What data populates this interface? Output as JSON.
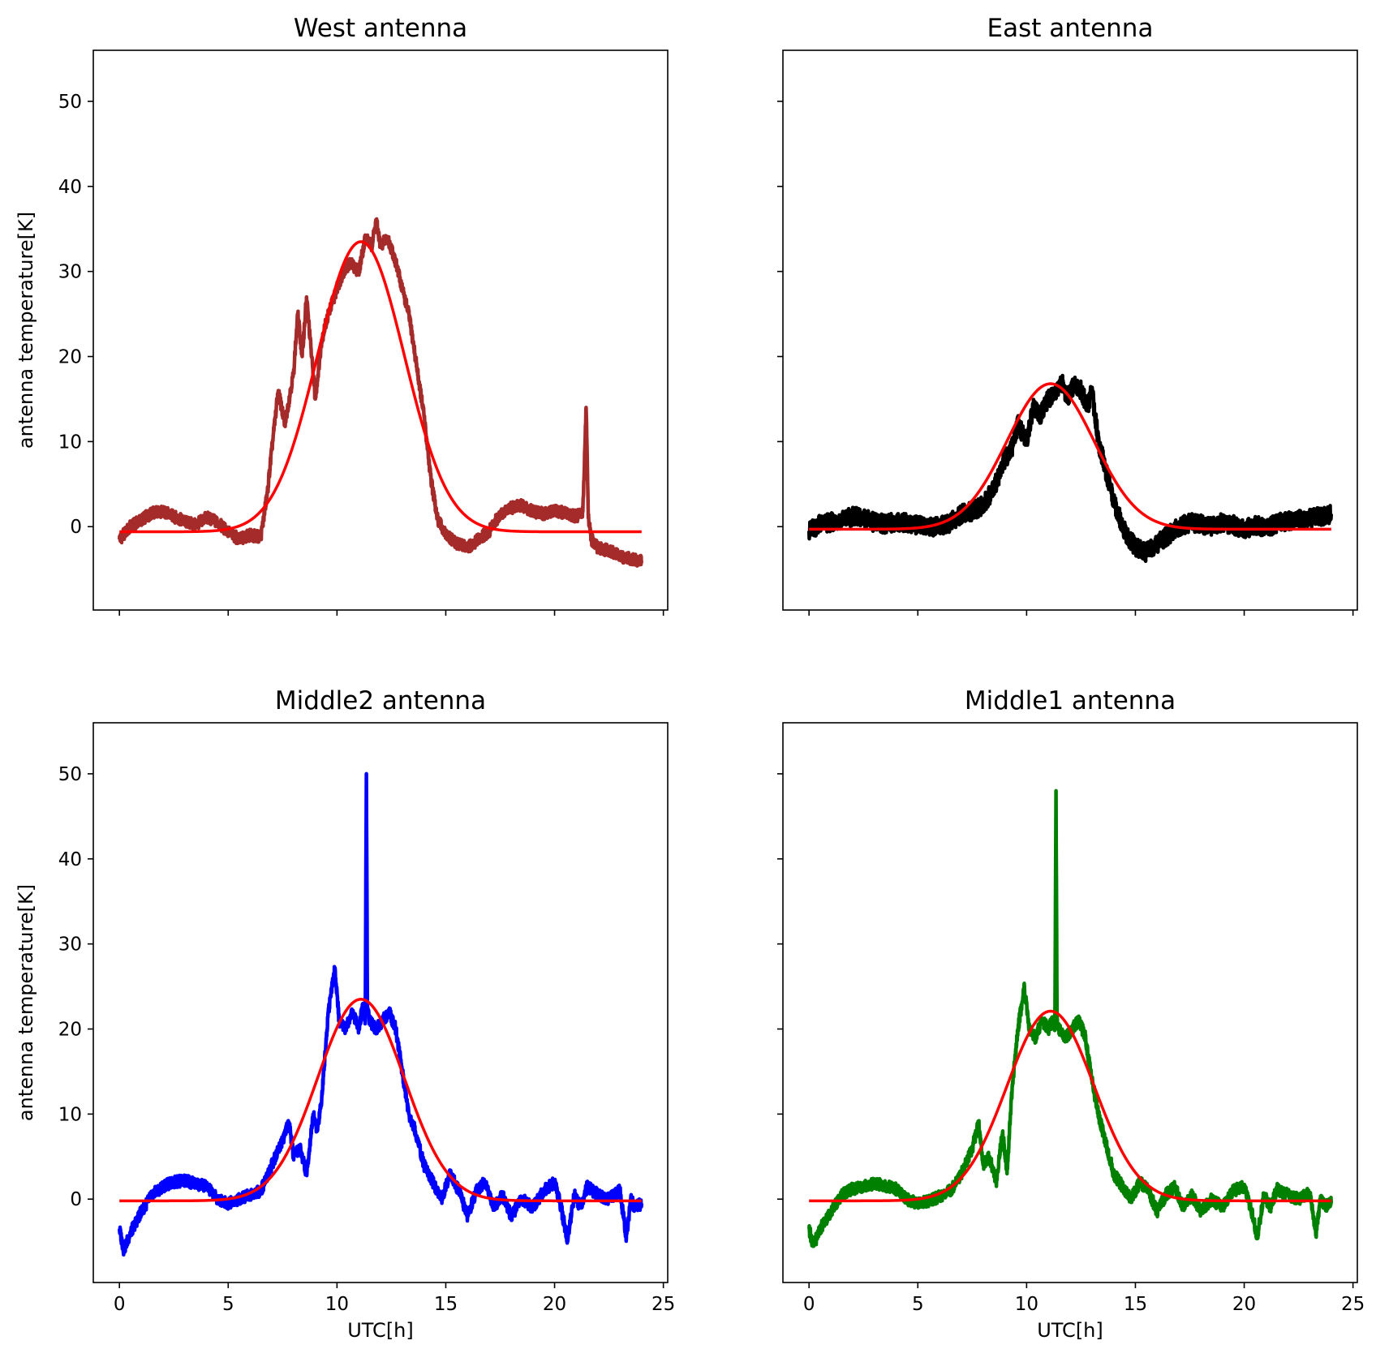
{
  "chart_data": [
    {
      "type": "line",
      "title": "West antenna",
      "xlabel": "",
      "ylabel": "antenna temperature[K]",
      "xlim": [
        -1.2,
        25.2
      ],
      "ylim": [
        -9.8,
        56
      ],
      "xticks": [
        0,
        5,
        10,
        15,
        20,
        25
      ],
      "yticks": [
        0,
        10,
        20,
        30,
        40,
        50
      ],
      "show_x_tick_labels": false,
      "show_y_tick_labels": true,
      "grid": false,
      "series": [
        {
          "role": "data",
          "color": "#a52a2a",
          "x": [
            0,
            0.5,
            1,
            1.5,
            2,
            2.5,
            3,
            3.5,
            4,
            4.5,
            5,
            5.5,
            6,
            6.5,
            6.8,
            7,
            7.3,
            7.6,
            8,
            8.2,
            8.4,
            8.6,
            8.8,
            9,
            9.3,
            9.6,
            10,
            10.3,
            10.6,
            11,
            11.3,
            11.6,
            11.8,
            12,
            12.3,
            12.6,
            13,
            13.3,
            13.6,
            14,
            14.3,
            14.6,
            15,
            15.5,
            16,
            16.5,
            17,
            17.5,
            18,
            18.5,
            19,
            19.5,
            20,
            20.5,
            21,
            21.3,
            21.45,
            21.55,
            21.7,
            22,
            22.5,
            23,
            23.5,
            24
          ],
          "y": [
            -1.5,
            0,
            0.8,
            1.6,
            1.8,
            1.2,
            0.6,
            0.2,
            1.1,
            0.5,
            -0.6,
            -1.5,
            -1,
            -1.2,
            4,
            9,
            16,
            12,
            18,
            25,
            20,
            27,
            21,
            15,
            22,
            25,
            28,
            30,
            31,
            30,
            34,
            33,
            36,
            33,
            34,
            32,
            28,
            25,
            20,
            13,
            6,
            1,
            -1,
            -2,
            -2.5,
            -1.5,
            -0.5,
            1.5,
            2.2,
            2.5,
            1.8,
            1.5,
            1.9,
            1.6,
            1.2,
            1.8,
            14,
            1,
            -1.5,
            -2.5,
            -2.8,
            -3.5,
            -3.8,
            -4
          ]
        },
        {
          "role": "fit",
          "color": "#ff0000",
          "gaussian": {
            "amplitude": 34.1,
            "center": 11.1,
            "sigma": 2.0,
            "offset": -0.6
          }
        }
      ]
    },
    {
      "type": "line",
      "title": "East antenna",
      "xlabel": "",
      "ylabel": "",
      "xlim": [
        -1.2,
        25.2
      ],
      "ylim": [
        -9.8,
        56
      ],
      "xticks": [
        0,
        5,
        10,
        15,
        20,
        25
      ],
      "yticks": [
        0,
        10,
        20,
        30,
        40,
        50
      ],
      "show_x_tick_labels": false,
      "show_y_tick_labels": false,
      "grid": false,
      "series": [
        {
          "role": "data",
          "color": "#000000",
          "x": [
            0,
            0.5,
            1,
            1.5,
            2,
            2.5,
            3,
            3.5,
            4,
            4.5,
            5,
            5.5,
            6,
            6.5,
            7,
            7.5,
            8,
            8.5,
            9,
            9.3,
            9.6,
            10,
            10.3,
            10.6,
            11,
            11.3,
            11.6,
            11.9,
            12.2,
            12.5,
            12.8,
            13,
            13.3,
            13.6,
            14,
            14.5,
            15,
            15.5,
            16,
            16.5,
            17,
            17.5,
            18,
            18.5,
            19,
            19.5,
            20,
            20.5,
            21,
            21.5,
            22,
            22.5,
            23,
            23.5,
            24
          ],
          "y": [
            -0.5,
            0.3,
            0.5,
            0.8,
            1.2,
            1.0,
            0.5,
            0.3,
            0.6,
            0.4,
            0.2,
            0.0,
            0.0,
            0.5,
            1.5,
            1.8,
            2.5,
            4.5,
            8,
            9,
            12,
            10,
            14,
            13,
            15,
            16,
            17,
            15,
            17,
            16,
            14,
            16,
            10,
            7,
            3,
            -0.5,
            -2.5,
            -3,
            -2,
            -1,
            0,
            0.5,
            0.3,
            0,
            0.5,
            0.2,
            -0.3,
            0.2,
            -0.2,
            0.4,
            0.6,
            0.8,
            1.0,
            1.2,
            1.5
          ]
        },
        {
          "role": "fit",
          "color": "#ff0000",
          "gaussian": {
            "amplitude": 17.1,
            "center": 11.1,
            "sigma": 2.0,
            "offset": -0.3
          }
        }
      ]
    },
    {
      "type": "line",
      "title": "Middle2 antenna",
      "xlabel": "UTC[h]",
      "ylabel": "antenna temperature[K]",
      "xlim": [
        -1.2,
        25.2
      ],
      "ylim": [
        -9.8,
        56
      ],
      "xticks": [
        0,
        5,
        10,
        15,
        20,
        25
      ],
      "yticks": [
        0,
        10,
        20,
        30,
        40,
        50
      ],
      "show_x_tick_labels": true,
      "show_y_tick_labels": true,
      "grid": false,
      "series": [
        {
          "role": "data",
          "color": "#0000ff",
          "x": [
            0,
            0.2,
            0.5,
            1,
            1.5,
            2,
            2.5,
            3,
            3.5,
            4,
            4.5,
            5,
            5.5,
            6,
            6.5,
            7,
            7.5,
            7.8,
            8,
            8.3,
            8.6,
            8.9,
            9.1,
            9.3,
            9.6,
            9.9,
            10.1,
            10.4,
            10.7,
            11,
            11.2,
            11.3,
            11.35,
            11.4,
            11.5,
            11.8,
            12.1,
            12.4,
            12.7,
            13,
            13.3,
            13.6,
            14,
            14.4,
            14.8,
            15.2,
            15.6,
            16,
            16.4,
            16.8,
            17.2,
            17.6,
            18,
            18.5,
            19,
            19.5,
            20,
            20.3,
            20.6,
            20.9,
            21.2,
            21.5,
            22,
            22.5,
            23,
            23.3,
            23.5,
            23.7,
            24
          ],
          "y": [
            -3.5,
            -6,
            -4,
            -1.5,
            0.5,
            1.5,
            2,
            2.2,
            1.8,
            1.5,
            0,
            -0.5,
            0,
            0.5,
            1,
            4,
            7,
            9,
            5,
            6,
            3,
            10,
            8,
            12,
            22,
            27,
            21,
            20,
            22,
            20,
            23,
            21,
            50,
            22,
            21,
            20,
            21,
            22,
            20,
            15,
            10,
            8,
            4,
            2,
            0,
            3,
            1,
            -2,
            1,
            2,
            -1,
            0.5,
            -2,
            0,
            -1,
            1,
            2,
            -1,
            -5,
            0.5,
            -1,
            1.5,
            0.5,
            0,
            1,
            -4.5,
            0,
            -1,
            -0.5
          ]
        },
        {
          "role": "fit",
          "color": "#ff0000",
          "gaussian": {
            "amplitude": 23.7,
            "center": 11.1,
            "sigma": 2.0,
            "offset": -0.2
          }
        }
      ]
    },
    {
      "type": "line",
      "title": "Middle1 antenna",
      "xlabel": "UTC[h]",
      "ylabel": "",
      "xlim": [
        -1.2,
        25.2
      ],
      "ylim": [
        -9.8,
        56
      ],
      "xticks": [
        0,
        5,
        10,
        15,
        20,
        25
      ],
      "yticks": [
        0,
        10,
        20,
        30,
        40,
        50
      ],
      "show_x_tick_labels": true,
      "show_y_tick_labels": false,
      "grid": false,
      "series": [
        {
          "role": "data",
          "color": "#008000",
          "x": [
            0,
            0.2,
            0.5,
            1,
            1.5,
            2,
            2.5,
            3,
            3.5,
            4,
            4.5,
            5,
            5.5,
            6,
            6.5,
            7,
            7.5,
            7.8,
            8,
            8.3,
            8.6,
            8.9,
            9.1,
            9.3,
            9.6,
            9.9,
            10.1,
            10.4,
            10.7,
            11,
            11.2,
            11.3,
            11.35,
            11.4,
            11.5,
            11.8,
            12.1,
            12.4,
            12.7,
            13,
            13.3,
            13.6,
            14,
            14.4,
            14.8,
            15.2,
            15.6,
            16,
            16.4,
            16.8,
            17.2,
            17.6,
            18,
            18.5,
            19,
            19.5,
            20,
            20.3,
            20.6,
            20.9,
            21.2,
            21.5,
            22,
            22.5,
            23,
            23.3,
            23.5,
            23.7,
            24
          ],
          "y": [
            -3.5,
            -5.5,
            -3.5,
            -1.5,
            0.5,
            1.2,
            1.5,
            1.8,
            1.6,
            1.2,
            0,
            -0.5,
            -0.2,
            0.3,
            1,
            3,
            6,
            9,
            4,
            5,
            2,
            8,
            3,
            12,
            20,
            25,
            20,
            19,
            21,
            20,
            21,
            20,
            48,
            21,
            20,
            19,
            20,
            21,
            19,
            14,
            10,
            7,
            3,
            1.5,
            0,
            2,
            1,
            -1.5,
            0.5,
            1.5,
            -1,
            0.5,
            -1.5,
            0,
            -1,
            1,
            1.5,
            -1,
            -4.5,
            0.5,
            -1,
            1.2,
            0.5,
            0,
            0.8,
            -4,
            0,
            -0.8,
            -0.5
          ]
        },
        {
          "role": "fit",
          "color": "#ff0000",
          "gaussian": {
            "amplitude": 22.3,
            "center": 11.1,
            "sigma": 2.0,
            "offset": -0.2
          }
        }
      ]
    }
  ]
}
